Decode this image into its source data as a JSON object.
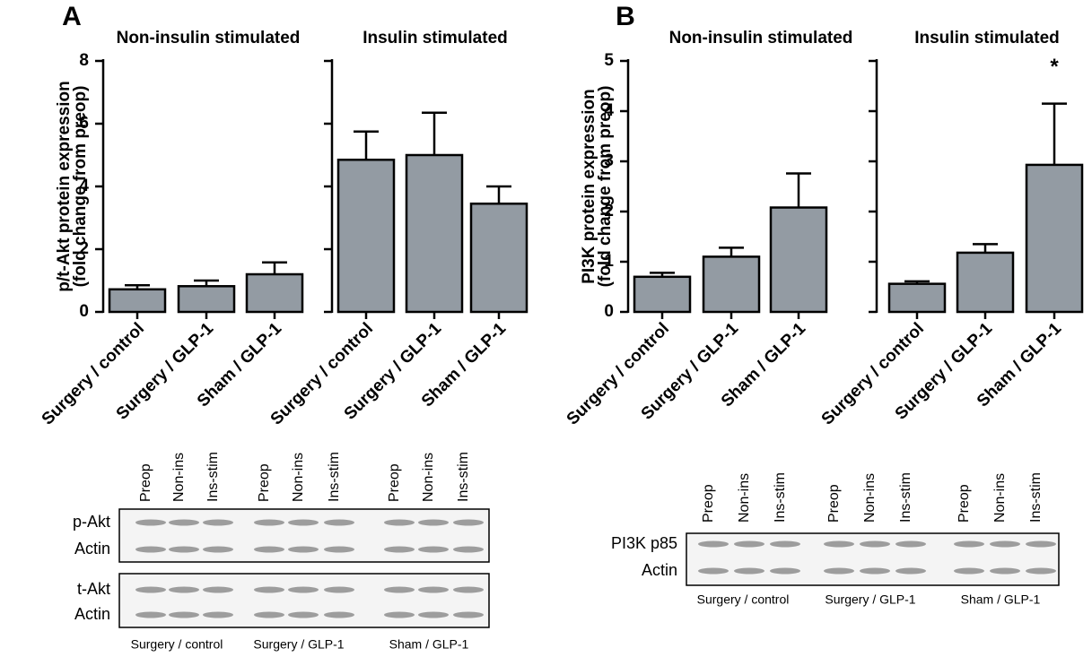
{
  "panels": [
    {
      "letter": "A"
    },
    {
      "letter": "B"
    }
  ],
  "chart_data": [
    {
      "type": "bar",
      "title": "Non-insulin stimulated",
      "ylabel": [
        "p/t-Akt protein expression",
        "(fold change from preop)"
      ],
      "categories": [
        "Surgery / control",
        "Surgery / GLP-1",
        "Sham / GLP-1"
      ],
      "values": [
        0.72,
        0.82,
        1.2
      ],
      "errors": [
        0.13,
        0.18,
        0.38
      ],
      "color": "#939ba3",
      "ylim": [
        0,
        8
      ],
      "yticks": [
        0,
        2,
        4,
        6,
        8
      ],
      "show_tick_labels": true
    },
    {
      "type": "bar",
      "title": "Insulin stimulated",
      "categories": [
        "Surgery / control",
        "Surgery / GLP-1",
        "Sham / GLP-1"
      ],
      "values": [
        4.85,
        5.0,
        3.45
      ],
      "errors": [
        0.9,
        1.35,
        0.55
      ],
      "color": "#939ba3",
      "ylim": [
        0,
        8
      ],
      "yticks": [
        0,
        2,
        4,
        6,
        8
      ],
      "show_tick_labels": false
    },
    {
      "type": "bar",
      "title": "Non-insulin stimulated",
      "ylabel": [
        "PI3K protein expression",
        "(fold change from preop)"
      ],
      "categories": [
        "Surgery / control",
        "Surgery / GLP-1",
        "Sham / GLP-1"
      ],
      "values": [
        0.7,
        1.1,
        2.08
      ],
      "errors": [
        0.08,
        0.18,
        0.68
      ],
      "color": "#939ba3",
      "ylim": [
        0,
        5
      ],
      "yticks": [
        0,
        1,
        2,
        3,
        4,
        5
      ],
      "show_tick_labels": true
    },
    {
      "type": "bar",
      "title": "Insulin stimulated",
      "categories": [
        "Surgery / control",
        "Surgery / GLP-1",
        "Sham / GLP-1"
      ],
      "values": [
        0.56,
        1.18,
        2.93
      ],
      "errors": [
        0.05,
        0.17,
        1.22
      ],
      "color": "#939ba3",
      "ylim": [
        0,
        5
      ],
      "yticks": [
        0,
        1,
        2,
        3,
        4,
        5
      ],
      "show_tick_labels": false,
      "annotations": [
        {
          "index": 2,
          "text": "*"
        }
      ]
    }
  ],
  "blots": [
    {
      "lanes": [
        "Preop",
        "Non-ins",
        "Ins-stim",
        "Preop",
        "Non-ins",
        "Ins-stim",
        "Preop",
        "Non-ins",
        "Ins-stim"
      ],
      "rows": [
        [
          "p-Akt",
          "Actin"
        ],
        [
          "t-Akt",
          "Actin"
        ]
      ],
      "groups": [
        "Surgery / control",
        "Surgery / GLP-1",
        "Sham / GLP-1"
      ]
    },
    {
      "lanes": [
        "Preop",
        "Non-ins",
        "Ins-stim",
        "Preop",
        "Non-ins",
        "Ins-stim",
        "Preop",
        "Non-ins",
        "Ins-stim"
      ],
      "rows": [
        [
          "PI3K p85",
          "Actin"
        ]
      ],
      "groups": [
        "Surgery / control",
        "Surgery / GLP-1",
        "Sham / GLP-1"
      ]
    }
  ]
}
